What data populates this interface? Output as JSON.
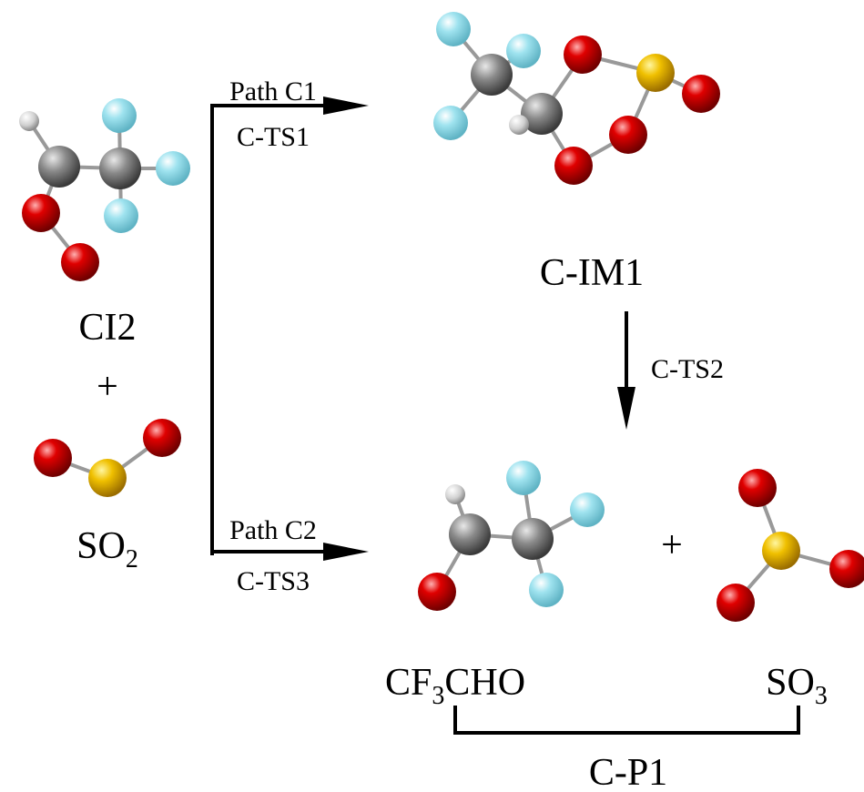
{
  "reactants": {
    "label": "CI2",
    "plus": "+",
    "so2": [
      "SO",
      "2"
    ]
  },
  "paths": [
    {
      "name": "Path C1",
      "ts": "C-TS1"
    },
    {
      "name": "Path C2",
      "ts": "C-TS3"
    }
  ],
  "intermediate": {
    "label": "C-IM1",
    "ts": "C-TS2"
  },
  "products": {
    "plus": "+",
    "cf3cho": [
      "CF",
      "3",
      "CHO"
    ],
    "so3": [
      "SO",
      "3"
    ],
    "group": "C-P1"
  }
}
